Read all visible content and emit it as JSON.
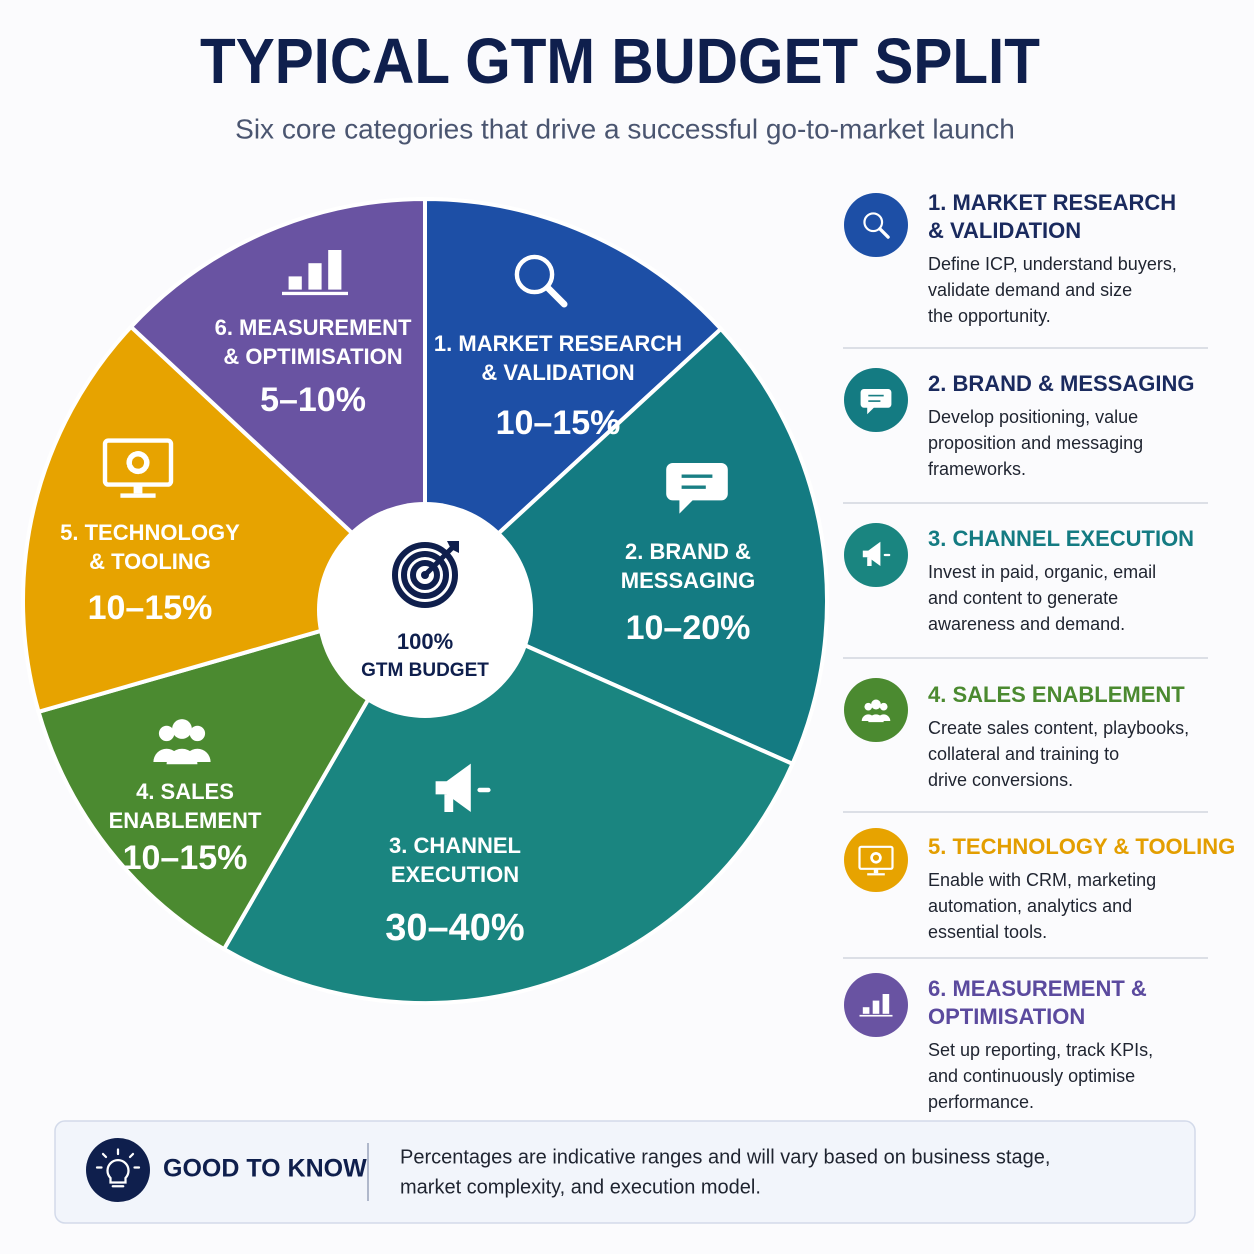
{
  "header": {
    "title": "TYPICAL GTM BUDGET SPLIT",
    "subtitle": "Six core categories that drive a successful go-to-market launch"
  },
  "pie": {
    "center": {
      "value": "100%",
      "label": "GTM BUDGET"
    },
    "segments": [
      {
        "label": [
          "1. MARKET RESEARCH",
          "& VALIDATION"
        ],
        "range": "10–15%"
      },
      {
        "label": [
          "2. BRAND &",
          "MESSAGING"
        ],
        "range": "10–20%"
      },
      {
        "label": [
          "3. CHANNEL",
          "EXECUTION"
        ],
        "range": "30–40%"
      },
      {
        "label": [
          "4. SALES",
          "ENABLEMENT"
        ],
        "range": "10–15%"
      },
      {
        "label": [
          "5. TECHNOLOGY",
          "& TOOLING"
        ],
        "range": "10–15%"
      },
      {
        "label": [
          "6. MEASUREMENT",
          "& OPTIMISATION"
        ],
        "range": "5–10%"
      }
    ]
  },
  "items": [
    {
      "title": [
        "1. MARKET RESEARCH",
        "& VALIDATION"
      ],
      "description": [
        "Define ICP, understand buyers,",
        "validate demand and size",
        "the opportunity."
      ]
    },
    {
      "title": [
        "2. BRAND & MESSAGING"
      ],
      "description": [
        "Develop positioning, value",
        "proposition and messaging",
        "frameworks."
      ]
    },
    {
      "title": [
        "3. CHANNEL EXECUTION"
      ],
      "description": [
        "Invest in paid, organic, email",
        "and content to generate",
        "awareness and demand."
      ]
    },
    {
      "title": [
        "4. SALES ENABLEMENT"
      ],
      "description": [
        "Create sales content, playbooks,",
        "collateral and training to",
        "drive conversions."
      ]
    },
    {
      "title": [
        "5. TECHNOLOGY & TOOLING"
      ],
      "description": [
        "Enable with CRM, marketing",
        "automation, analytics and",
        "essential tools."
      ]
    },
    {
      "title": [
        "6. MEASUREMENT &",
        "OPTIMISATION"
      ],
      "description": [
        "Set up reporting, track KPIs,",
        "and continuously optimise",
        "performance."
      ]
    }
  ],
  "footer": {
    "title": "GOOD TO KNOW",
    "text": [
      "Percentages are indicative ranges and will vary based on business stage,",
      "market complexity, and execution model."
    ]
  }
}
